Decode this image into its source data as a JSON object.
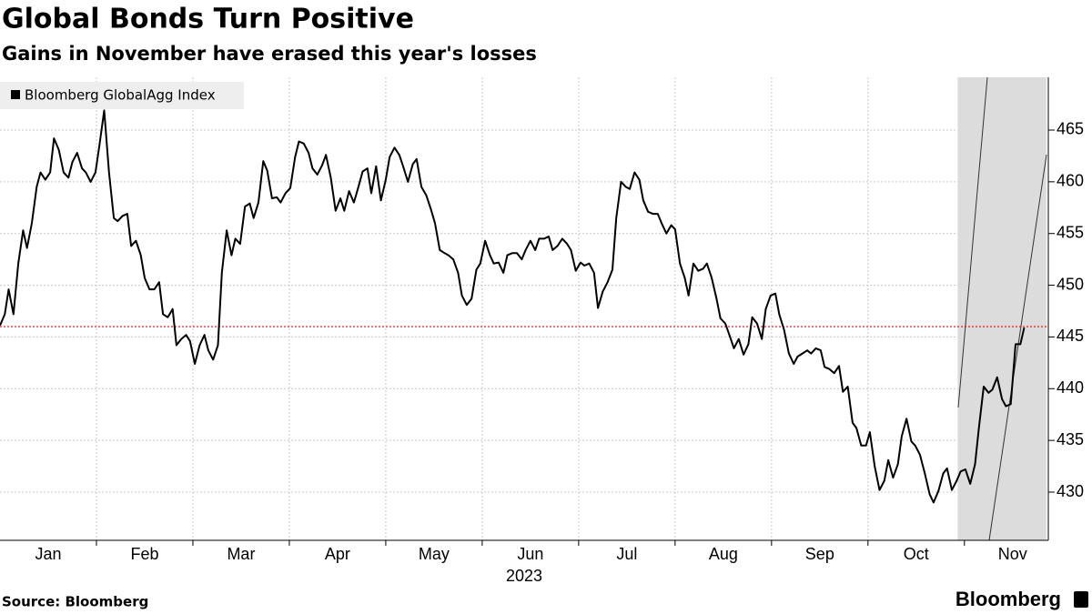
{
  "chart_data": {
    "type": "line",
    "title": "Global Bonds Turn Positive",
    "subtitle": "Gains in November have erased this year's losses",
    "source": "Source: Bloomberg",
    "logo": "Bloomberg",
    "year_label": "2023",
    "legend_position": "top-left",
    "grid": true,
    "xlim": [
      0,
      10.87
    ],
    "xgrid": [
      1,
      2,
      3,
      4,
      5,
      6,
      7,
      8,
      9,
      10
    ],
    "xticks": [
      {
        "value": 0.5,
        "label": "Jan"
      },
      {
        "value": 1.5,
        "label": "Feb"
      },
      {
        "value": 2.5,
        "label": "Mar"
      },
      {
        "value": 3.5,
        "label": "Apr"
      },
      {
        "value": 4.5,
        "label": "May"
      },
      {
        "value": 5.5,
        "label": "Jun"
      },
      {
        "value": 6.5,
        "label": "Jul"
      },
      {
        "value": 7.5,
        "label": "Aug"
      },
      {
        "value": 8.5,
        "label": "Sep"
      },
      {
        "value": 9.5,
        "label": "Oct"
      },
      {
        "value": 10.5,
        "label": "Nov"
      }
    ],
    "ylim": [
      425.34,
      470.1
    ],
    "yticks": [
      430,
      435,
      440,
      445,
      450,
      455,
      460,
      465
    ],
    "reference_line": {
      "value": 446,
      "color": "#e8000b"
    },
    "highlight_x": [
      9.93,
      10.85
    ],
    "highlight_color": "#dcdcdc",
    "x": [
      0,
      0.05,
      0.09,
      0.14,
      0.19,
      0.24,
      0.28,
      0.33,
      0.38,
      0.42,
      0.47,
      0.52,
      0.56,
      0.61,
      0.66,
      0.71,
      0.75,
      0.8,
      0.85,
      0.89,
      0.94,
      0.99,
      1.03,
      1.08,
      1.13,
      1.18,
      1.22,
      1.27,
      1.32,
      1.36,
      1.41,
      1.46,
      1.5,
      1.55,
      1.6,
      1.65,
      1.69,
      1.74,
      1.79,
      1.83,
      1.88,
      1.93,
      1.97,
      2.02,
      2.07,
      2.12,
      2.16,
      2.21,
      2.26,
      2.3,
      2.35,
      2.4,
      2.44,
      2.49,
      2.54,
      2.59,
      2.63,
      2.68,
      2.73,
      2.77,
      2.82,
      2.87,
      2.91,
      2.96,
      3.01,
      3.06,
      3.1,
      3.15,
      3.2,
      3.24,
      3.29,
      3.34,
      3.38,
      3.43,
      3.48,
      3.53,
      3.57,
      3.62,
      3.67,
      3.71,
      3.76,
      3.81,
      3.85,
      3.9,
      3.95,
      4.0,
      4.04,
      4.09,
      4.14,
      4.18,
      4.23,
      4.28,
      4.32,
      4.37,
      4.42,
      4.47,
      4.51,
      4.56,
      4.61,
      4.65,
      4.7,
      4.75,
      4.79,
      4.84,
      4.89,
      4.94,
      4.98,
      5.03,
      5.08,
      5.12,
      5.17,
      5.22,
      5.26,
      5.31,
      5.36,
      5.41,
      5.45,
      5.5,
      5.55,
      5.59,
      5.64,
      5.69,
      5.73,
      5.78,
      5.83,
      5.88,
      5.92,
      5.97,
      6.02,
      6.06,
      6.11,
      6.16,
      6.2,
      6.25,
      6.3,
      6.35,
      6.39,
      6.44,
      6.49,
      6.53,
      6.58,
      6.63,
      6.67,
      6.72,
      6.77,
      6.82,
      6.86,
      6.91,
      6.96,
      7.0,
      7.05,
      7.1,
      7.14,
      7.19,
      7.24,
      7.29,
      7.33,
      7.38,
      7.43,
      7.47,
      7.52,
      7.57,
      7.61,
      7.66,
      7.71,
      7.76,
      7.8,
      7.85,
      7.9,
      7.94,
      7.99,
      8.04,
      8.08,
      8.13,
      8.18,
      8.23,
      8.27,
      8.32,
      8.37,
      8.41,
      8.46,
      8.51,
      8.55,
      8.6,
      8.65,
      8.7,
      8.74,
      8.79,
      8.84,
      8.88,
      8.93,
      8.98,
      9.02,
      9.07,
      9.12,
      9.17,
      9.21,
      9.26,
      9.31,
      9.35,
      9.4,
      9.45,
      9.49,
      9.54,
      9.59,
      9.64,
      9.68,
      9.73,
      9.78,
      9.82,
      9.87,
      9.92,
      9.96,
      10.01,
      10.06,
      10.11,
      10.15,
      10.2,
      10.25,
      10.29,
      10.34,
      10.39,
      10.43,
      10.48,
      10.53,
      10.58,
      10.62
    ],
    "series": [
      {
        "name": "Bloomberg GlobalAgg Index",
        "color": "#000000",
        "values": [
          446.1,
          447.2,
          449.6,
          447.2,
          452.1,
          455.3,
          453.6,
          456.0,
          459.5,
          460.9,
          460.2,
          460.9,
          464.2,
          463.1,
          460.9,
          460.4,
          461.9,
          462.8,
          461.3,
          460.9,
          460.0,
          460.9,
          463.5,
          466.9,
          460.9,
          456.5,
          456.2,
          456.7,
          456.9,
          453.8,
          454.3,
          452.9,
          450.7,
          449.6,
          449.6,
          450.3,
          447.2,
          446.9,
          447.7,
          444.2,
          444.8,
          445.2,
          444.6,
          442.4,
          444.2,
          445.2,
          443.7,
          442.8,
          444.2,
          451.2,
          455.3,
          452.9,
          454.5,
          454.0,
          457.6,
          457.9,
          456.5,
          458.0,
          462.0,
          461.1,
          458.4,
          458.5,
          458.0,
          458.9,
          459.4,
          462.4,
          463.9,
          463.7,
          462.8,
          461.3,
          460.7,
          461.6,
          462.6,
          460.4,
          457.2,
          458.4,
          457.2,
          459.1,
          458.0,
          459.3,
          461.0,
          461.3,
          458.9,
          461.5,
          458.2,
          460.2,
          462.4,
          463.3,
          462.6,
          461.5,
          460.0,
          461.7,
          462.2,
          459.5,
          458.7,
          457.3,
          456.0,
          453.4,
          453.1,
          452.9,
          452.5,
          451.2,
          449.0,
          448.1,
          448.7,
          451.5,
          452.1,
          454.3,
          452.9,
          452.1,
          452.2,
          451.2,
          452.9,
          453.1,
          453.1,
          452.5,
          453.4,
          454.3,
          453.4,
          454.5,
          454.5,
          454.7,
          453.4,
          453.8,
          454.5,
          454.0,
          453.4,
          451.4,
          452.2,
          451.9,
          452.1,
          451.2,
          447.8,
          449.4,
          450.3,
          451.5,
          456.5,
          460.0,
          459.5,
          459.3,
          460.9,
          460.2,
          458.2,
          457.1,
          456.9,
          456.9,
          456.0,
          455.0,
          455.8,
          455.4,
          452.1,
          450.7,
          449.0,
          452.1,
          451.4,
          451.6,
          452.1,
          450.7,
          448.7,
          446.8,
          446.3,
          445.0,
          443.9,
          444.8,
          443.3,
          444.3,
          446.9,
          446.3,
          444.8,
          447.7,
          449.0,
          449.2,
          447.2,
          445.7,
          443.4,
          442.4,
          443.1,
          443.4,
          443.7,
          443.4,
          443.9,
          443.7,
          442.1,
          441.9,
          441.5,
          442.2,
          439.7,
          440.2,
          436.7,
          436.2,
          434.5,
          434.5,
          435.8,
          432.5,
          430.2,
          431.1,
          433.1,
          431.4,
          432.7,
          435.4,
          437.1,
          434.9,
          434.5,
          433.6,
          431.8,
          429.8,
          429.0,
          430.1,
          431.8,
          432.3,
          430.2,
          431.1,
          432.0,
          432.2,
          430.8,
          432.7,
          436.2,
          440.2,
          439.6,
          439.9,
          441.1,
          439.0,
          438.3,
          438.5,
          444.3,
          444.3,
          445.9
        ]
      }
    ]
  }
}
